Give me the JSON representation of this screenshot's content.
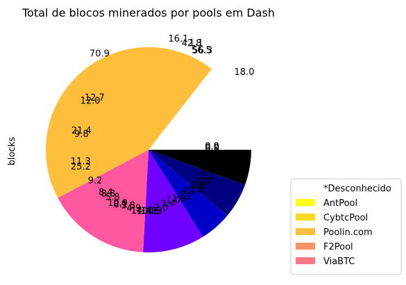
{
  "chart_data": {
    "type": "pie",
    "title": "Total de blocos minerados por pools em Dash",
    "ylabel": "blocks",
    "legend_position": "lower-right",
    "legend": [
      {
        "label": "*Desconhecido",
        "color": "#ffffff"
      },
      {
        "label": "AntPool",
        "color": "#ffff1a"
      },
      {
        "label": "CybtcPool",
        "color": "#f7d81f"
      },
      {
        "label": "Poolin.com",
        "color": "#ffbf3c"
      },
      {
        "label": "F2Pool",
        "color": "#f99365"
      },
      {
        "label": "ViaBTC",
        "color": "#ff7888"
      }
    ],
    "slices": [
      {
        "start_deg": 0,
        "end_deg": 20,
        "color": "#000000"
      },
      {
        "start_deg": 20,
        "end_deg": 40,
        "color": "#000080"
      },
      {
        "start_deg": 40,
        "end_deg": 58,
        "color": "#0000c8"
      },
      {
        "start_deg": 58,
        "end_deg": 93,
        "color": "#7000ff"
      },
      {
        "start_deg": 93,
        "end_deg": 152,
        "color": "#ff58a0"
      },
      {
        "start_deg": 152,
        "end_deg": 308,
        "color": "#ffbf3c"
      }
    ],
    "data_labels": [
      {
        "text": "70.9",
        "angle": 243,
        "r": 1.05
      },
      {
        "text": "16.1",
        "angle": 285,
        "r": 1.12
      },
      {
        "text": "42.8",
        "angle": 292,
        "r": 1.12
      },
      {
        "text": "1.1",
        "angle": 294,
        "r": 1.14
      },
      {
        "text": "56.5",
        "angle": 298,
        "r": 1.1
      },
      {
        "text": "56.3",
        "angle": 298.5,
        "r": 1.1
      },
      {
        "text": "18.0",
        "angle": 321,
        "r": 1.2
      },
      {
        "text": "12.7",
        "angle": 224,
        "r": 0.73
      },
      {
        "text": "12.0",
        "angle": 220,
        "r": 0.74
      },
      {
        "text": "21.4",
        "angle": 196,
        "r": 0.68
      },
      {
        "text": "9.8",
        "angle": 193,
        "r": 0.67
      },
      {
        "text": "11.3",
        "angle": 170,
        "r": 0.67
      },
      {
        "text": "25.2",
        "angle": 166,
        "r": 0.68
      },
      {
        "text": "9.2",
        "angle": 150,
        "r": 0.6
      },
      {
        "text": "8.4",
        "angle": 135,
        "r": 0.59
      },
      {
        "text": "8.8",
        "angle": 132.5,
        "r": 0.58
      },
      {
        "text": "5.8",
        "angle": 127,
        "r": 0.58
      },
      {
        "text": "10.9",
        "angle": 120,
        "r": 0.6
      },
      {
        "text": "8.1",
        "angle": 117,
        "r": 0.6
      },
      {
        "text": "5.8",
        "angle": 110,
        "r": 0.58
      },
      {
        "text": "4.9",
        "angle": 104,
        "r": 0.59
      },
      {
        "text": "14.4",
        "angle": 97,
        "r": 0.6
      },
      {
        "text": "10.3",
        "angle": 92,
        "r": 0.6
      },
      {
        "text": "14.5",
        "angle": 88,
        "r": 0.6
      },
      {
        "text": "0.3",
        "angle": 84,
        "r": 0.6
      },
      {
        "text": "2.0",
        "angle": 78,
        "r": 0.58
      },
      {
        "text": "3.4",
        "angle": 70,
        "r": 0.56
      },
      {
        "text": "1.0",
        "angle": 64,
        "r": 0.55
      },
      {
        "text": "1.3",
        "angle": 58,
        "r": 0.56
      },
      {
        "text": "3.2",
        "angle": 52,
        "r": 0.58
      },
      {
        "text": "4.1",
        "angle": 46,
        "r": 0.56
      },
      {
        "text": "0.5",
        "angle": 40,
        "r": 0.6
      },
      {
        "text": "1.8",
        "angle": 36,
        "r": 0.6
      },
      {
        "text": "0.9",
        "angle": 30,
        "r": 0.62
      },
      {
        "text": "2.2",
        "angle": 24,
        "r": 0.62
      },
      {
        "text": "0.7",
        "angle": 18,
        "r": 0.62
      },
      {
        "text": "0.4",
        "angle": 12,
        "r": 0.62
      },
      {
        "text": "0.2",
        "angle": 6,
        "r": 0.62
      },
      {
        "text": "0.1",
        "angle": 1,
        "r": 0.62
      },
      {
        "text": "0.0",
        "angle": -1,
        "r": 0.62
      },
      {
        "text": "0.0",
        "angle": -2,
        "r": 0.62
      },
      {
        "text": "0.0",
        "angle": -3,
        "r": 0.62
      }
    ]
  }
}
